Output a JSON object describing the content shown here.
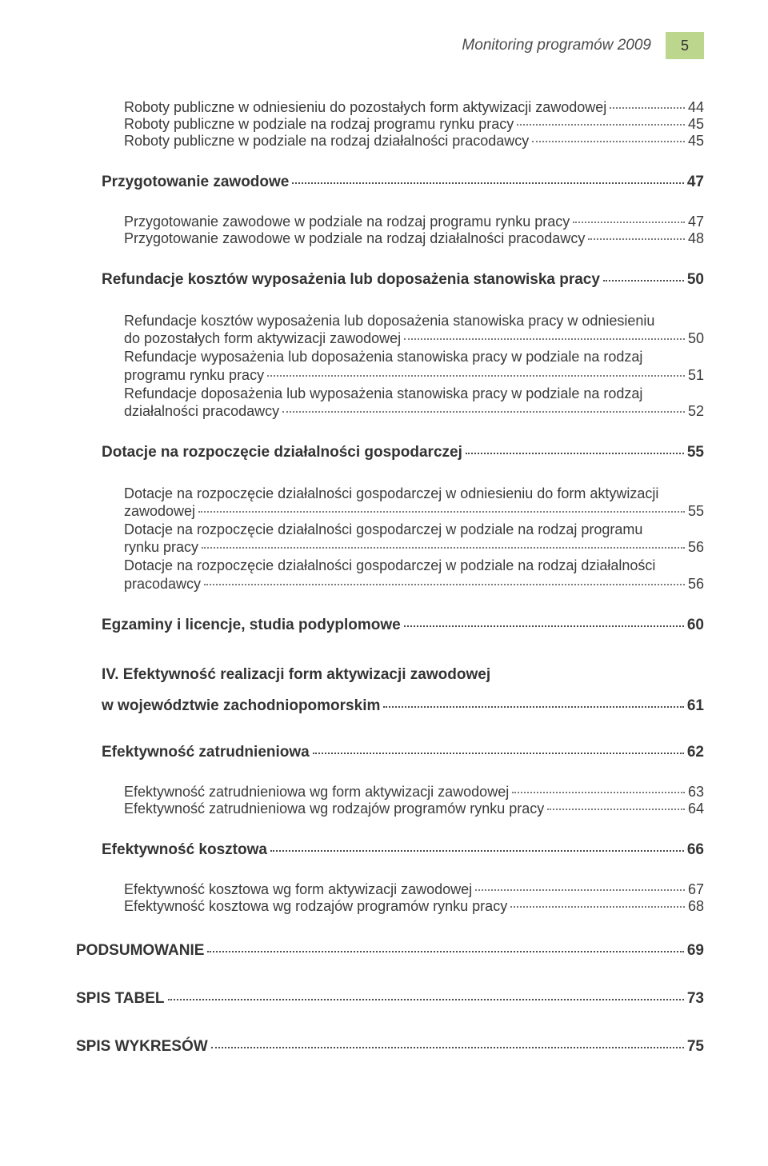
{
  "header": {
    "title": "Monitoring programów 2009",
    "page_num": "5",
    "accent_color": "#bcd68d"
  },
  "toc": {
    "groups": [
      {
        "level": 2,
        "indent": 2,
        "entries": [
          {
            "label_pre": "",
            "label_last": "Roboty publiczne w odniesieniu do pozostałych form aktywizacji zawodowej",
            "page": "44"
          },
          {
            "label_pre": "",
            "label_last": "Roboty publiczne w podziale na rodzaj programu rynku pracy",
            "page": "45"
          },
          {
            "label_pre": "",
            "label_last": "Roboty publiczne w podziale na rodzaj działalności pracodawcy",
            "page": "45"
          }
        ]
      },
      {
        "level": 1,
        "indent": 1,
        "entries": [
          {
            "label_pre": "",
            "label_last": "Przygotowanie zawodowe",
            "page": "47"
          }
        ]
      },
      {
        "level": 2,
        "indent": 2,
        "entries": [
          {
            "label_pre": "",
            "label_last": "Przygotowanie zawodowe w podziale na rodzaj programu rynku pracy",
            "page": "47"
          },
          {
            "label_pre": "",
            "label_last": "Przygotowanie zawodowe w podziale na rodzaj działalności pracodawcy",
            "page": "48"
          }
        ]
      },
      {
        "level": 1,
        "indent": 1,
        "entries": [
          {
            "label_pre": "",
            "label_last": "Refundacje kosztów wyposażenia lub doposażenia stanowiska pracy",
            "page": "50"
          }
        ]
      },
      {
        "level": 2,
        "indent": 2,
        "entries": [
          {
            "label_pre": "Refundacje kosztów wyposażenia lub doposażenia stanowiska pracy  w odniesieniu",
            "label_last": "do pozostałych form aktywizacji zawodowej",
            "page": "50"
          },
          {
            "label_pre": "Refundacje wyposażenia lub doposażenia stanowiska pracy w podziale na rodzaj",
            "label_last": "programu rynku pracy",
            "page": "51"
          },
          {
            "label_pre": "Refundacje doposażenia lub wyposażenia stanowiska pracy w podziale  na rodzaj",
            "label_last": "działalności pracodawcy",
            "page": "52"
          }
        ]
      },
      {
        "level": 1,
        "indent": 1,
        "entries": [
          {
            "label_pre": "",
            "label_last": "Dotacje na rozpoczęcie działalności gospodarczej",
            "page": "55"
          }
        ]
      },
      {
        "level": 2,
        "indent": 2,
        "entries": [
          {
            "label_pre": "Dotacje na rozpoczęcie działalności gospodarczej w odniesieniu do form aktywizacji",
            "label_last": "zawodowej",
            "page": "55"
          },
          {
            "label_pre": "Dotacje na rozpoczęcie działalności gospodarczej w podziale na rodzaj programu",
            "label_last": "rynku pracy",
            "page": "56"
          },
          {
            "label_pre": "Dotacje na rozpoczęcie działalności gospodarczej w podziale na rodzaj działalności",
            "label_last": "pracodawcy",
            "page": "56"
          }
        ]
      },
      {
        "level": 1,
        "indent": 1,
        "entries": [
          {
            "label_pre": "",
            "label_last": "Egzaminy i licencje, studia podyplomowe",
            "page": "60"
          }
        ]
      },
      {
        "level": 1,
        "indent": 1,
        "entries": [
          {
            "label_pre": "IV. Efektywność realizacji form aktywizacji zawodowej",
            "label_last": "w województwie zachodniopomorskim",
            "page": "61"
          }
        ]
      },
      {
        "level": 1,
        "indent": 1,
        "entries": [
          {
            "label_pre": "",
            "label_last": "Efektywność zatrudnieniowa",
            "page": "62"
          }
        ]
      },
      {
        "level": 2,
        "indent": 2,
        "entries": [
          {
            "label_pre": "",
            "label_last": "Efektywność zatrudnieniowa wg form aktywizacji zawodowej",
            "page": "63"
          },
          {
            "label_pre": "",
            "label_last": "Efektywność zatrudnieniowa wg rodzajów programów rynku pracy",
            "page": "64"
          }
        ]
      },
      {
        "level": 1,
        "indent": 1,
        "entries": [
          {
            "label_pre": "",
            "label_last": "Efektywność kosztowa",
            "page": "66"
          }
        ]
      },
      {
        "level": 2,
        "indent": 2,
        "entries": [
          {
            "label_pre": "",
            "label_last": "Efektywność kosztowa wg form aktywizacji zawodowej",
            "page": "67"
          },
          {
            "label_pre": "",
            "label_last": "Efektywność kosztowa wg rodzajów programów rynku pracy",
            "page": "68"
          }
        ]
      },
      {
        "level": 0,
        "indent": 0,
        "entries": [
          {
            "label_pre": "",
            "label_last": "PODSUMOWANIE",
            "page": "69"
          }
        ]
      },
      {
        "level": 0,
        "indent": 0,
        "entries": [
          {
            "label_pre": "",
            "label_last": "SPIS TABEL",
            "page": "73"
          },
          {
            "label_pre": "",
            "label_last": "SPIS WYKRESÓW",
            "page": "75"
          }
        ]
      }
    ]
  },
  "style": {
    "font_family": "Verdana, Geneva, sans-serif",
    "text_color": "#3a3a3a",
    "bold_color": "#333333",
    "dot_color": "#6a6a6a",
    "background": "#ffffff",
    "heading_fontsize_pt": 14,
    "body_fontsize_pt": 13
  }
}
